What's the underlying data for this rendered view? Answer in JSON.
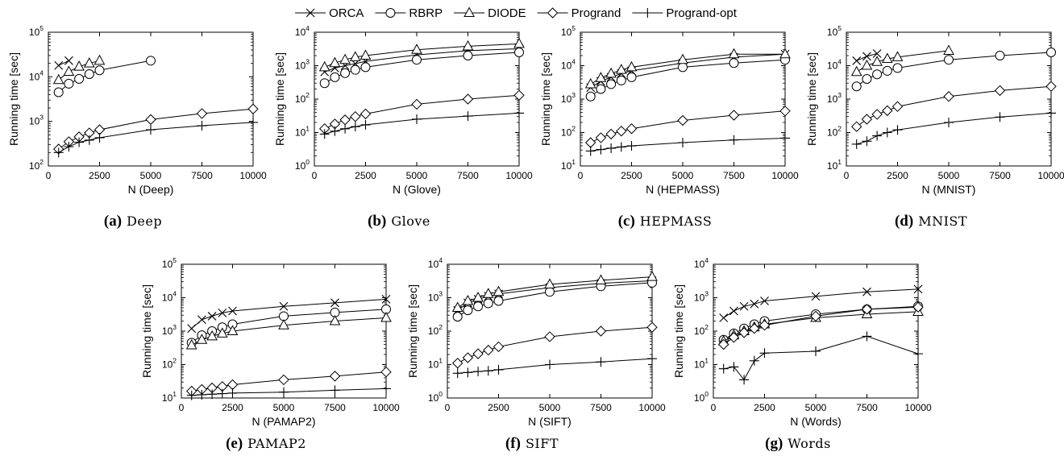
{
  "legend": {
    "entries": [
      {
        "name": "ORCA",
        "marker": "x"
      },
      {
        "name": "RBRP",
        "marker": "circle"
      },
      {
        "name": "DIODE",
        "marker": "triangle"
      },
      {
        "name": "Progrand",
        "marker": "diamond"
      },
      {
        "name": "Progrand-opt",
        "marker": "plus"
      }
    ]
  },
  "ylabel": "Running time [sec]",
  "chart_data": [
    {
      "id": "a",
      "tag": "(a)",
      "caption": "Deep",
      "type": "line",
      "xlabel": "N (Deep)",
      "ylabel": "Running time [sec]",
      "xlim": [
        0,
        10000
      ],
      "ylim_log10": [
        2,
        5
      ],
      "xticks": [
        0,
        2500,
        5000,
        7500,
        10000
      ],
      "yticks": [
        "10^2",
        "10^3",
        "10^4",
        "10^5"
      ],
      "series": [
        {
          "name": "ORCA",
          "marker": "x",
          "x": [
            500,
            1000
          ],
          "y": [
            18000,
            23000
          ]
        },
        {
          "name": "RBRP",
          "marker": "circle",
          "x": [
            500,
            1000,
            1500,
            2000,
            2500,
            5000
          ],
          "y": [
            4500,
            7000,
            9000,
            11500,
            14000,
            23000
          ]
        },
        {
          "name": "DIODE",
          "marker": "triangle",
          "x": [
            500,
            1000,
            1500,
            2000,
            2500
          ],
          "y": [
            8500,
            13000,
            17000,
            20000,
            23000
          ]
        },
        {
          "name": "Progrand",
          "marker": "diamond",
          "x": [
            500,
            1000,
            1500,
            2000,
            2500,
            5000,
            7500,
            10000
          ],
          "y": [
            240,
            350,
            450,
            550,
            650,
            1100,
            1500,
            1900
          ]
        },
        {
          "name": "Progrand-opt",
          "marker": "plus",
          "x": [
            500,
            1000,
            1500,
            2000,
            2500,
            5000,
            7500,
            10000
          ],
          "y": [
            200,
            270,
            340,
            380,
            430,
            650,
            800,
            950
          ]
        }
      ]
    },
    {
      "id": "b",
      "tag": "(b)",
      "caption": "Glove",
      "type": "line",
      "xlabel": "N (Glove)",
      "ylabel": "Running time [sec]",
      "xlim": [
        0,
        10000
      ],
      "ylim_log10": [
        0,
        4
      ],
      "xticks": [
        0,
        2500,
        5000,
        7500,
        10000
      ],
      "yticks": [
        "10^0",
        "10^1",
        "10^2",
        "10^3",
        "10^4"
      ],
      "series": [
        {
          "name": "ORCA",
          "marker": "x",
          "x": [
            500,
            1000,
            1500,
            2000,
            2500,
            5000,
            7500,
            10000
          ],
          "y": [
            650,
            850,
            1000,
            1150,
            1350,
            2100,
            2800,
            3200
          ]
        },
        {
          "name": "RBRP",
          "marker": "circle",
          "x": [
            500,
            1000,
            1500,
            2000,
            2500,
            5000,
            7500,
            10000
          ],
          "y": [
            300,
            450,
            600,
            750,
            900,
            1500,
            2000,
            2500
          ]
        },
        {
          "name": "DIODE",
          "marker": "triangle",
          "x": [
            500,
            1000,
            1500,
            2000,
            2500,
            5000,
            7500,
            10000
          ],
          "y": [
            900,
            1200,
            1500,
            1800,
            2000,
            3000,
            3800,
            4500
          ]
        },
        {
          "name": "Progrand",
          "marker": "diamond",
          "x": [
            500,
            1000,
            1500,
            2000,
            2500,
            5000,
            7500,
            10000
          ],
          "y": [
            13,
            18,
            24,
            30,
            36,
            70,
            100,
            130
          ]
        },
        {
          "name": "Progrand-opt",
          "marker": "plus",
          "x": [
            500,
            1000,
            1500,
            2000,
            2500,
            5000,
            7500,
            10000
          ],
          "y": [
            9,
            11,
            13,
            15,
            17,
            25,
            31,
            38
          ]
        }
      ]
    },
    {
      "id": "c",
      "tag": "(c)",
      "caption": "HEPMASS",
      "type": "line",
      "xlabel": "N (HEPMASS)",
      "ylabel": "Running time [sec]",
      "xlim": [
        0,
        10000
      ],
      "ylim_log10": [
        1,
        5
      ],
      "xticks": [
        0,
        2500,
        5000,
        7500,
        10000
      ],
      "yticks": [
        "10^1",
        "10^2",
        "10^3",
        "10^4",
        "10^5"
      ],
      "series": [
        {
          "name": "ORCA",
          "marker": "x",
          "x": [
            500,
            1000,
            1500,
            2000,
            2500,
            5000,
            7500,
            10000
          ],
          "y": [
            2200,
            3400,
            4500,
            5800,
            7000,
            12000,
            18000,
            22000
          ]
        },
        {
          "name": "RBRP",
          "marker": "circle",
          "x": [
            500,
            1000,
            1500,
            2000,
            2500,
            5000,
            7500,
            10000
          ],
          "y": [
            1200,
            2000,
            2800,
            3600,
            4500,
            9000,
            12000,
            15000
          ]
        },
        {
          "name": "DIODE",
          "marker": "triangle",
          "x": [
            500,
            1000,
            1500,
            2000,
            2500,
            5000,
            7500,
            10000
          ],
          "y": [
            2800,
            4300,
            5800,
            7500,
            9000,
            15000,
            22000,
            22000
          ]
        },
        {
          "name": "Progrand",
          "marker": "diamond",
          "x": [
            500,
            1000,
            1500,
            2000,
            2500,
            5000,
            7500,
            10000
          ],
          "y": [
            50,
            70,
            90,
            110,
            130,
            230,
            330,
            440
          ]
        },
        {
          "name": "Progrand-opt",
          "marker": "plus",
          "x": [
            500,
            1000,
            1500,
            2000,
            2500,
            5000,
            7500,
            10000
          ],
          "y": [
            28,
            31,
            34,
            37,
            40,
            50,
            60,
            68
          ]
        }
      ]
    },
    {
      "id": "d",
      "tag": "(d)",
      "caption": "MNIST",
      "type": "line",
      "xlabel": "N (MNIST)",
      "ylabel": "Running time [sec]",
      "xlim": [
        0,
        10000
      ],
      "ylim_log10": [
        1,
        5
      ],
      "xticks": [
        0,
        2500,
        5000,
        7500,
        10000
      ],
      "yticks": [
        "10^1",
        "10^2",
        "10^3",
        "10^4",
        "10^5"
      ],
      "series": [
        {
          "name": "ORCA",
          "marker": "x",
          "x": [
            500,
            1000,
            1500
          ],
          "y": [
            14000,
            19000,
            23000
          ]
        },
        {
          "name": "RBRP",
          "marker": "circle",
          "x": [
            500,
            1000,
            1500,
            2000,
            2500,
            5000,
            7500,
            10000
          ],
          "y": [
            2400,
            4000,
            5500,
            7000,
            8500,
            15000,
            20000,
            25000
          ]
        },
        {
          "name": "DIODE",
          "marker": "triangle",
          "x": [
            500,
            1000,
            1500,
            2000,
            2500,
            5000
          ],
          "y": [
            6500,
            10000,
            13000,
            16000,
            18000,
            28000
          ]
        },
        {
          "name": "Progrand",
          "marker": "diamond",
          "x": [
            500,
            1000,
            1500,
            2000,
            2500,
            5000,
            7500,
            10000
          ],
          "y": [
            150,
            250,
            350,
            450,
            600,
            1200,
            1800,
            2400
          ]
        },
        {
          "name": "Progrand-opt",
          "marker": "plus",
          "x": [
            500,
            1000,
            1500,
            2000,
            2500,
            5000,
            7500,
            10000
          ],
          "y": [
            45,
            55,
            80,
            100,
            120,
            200,
            290,
            380
          ]
        }
      ]
    },
    {
      "id": "e",
      "tag": "(e)",
      "caption": "PAMAP2",
      "type": "line",
      "xlabel": "N (PAMAP2)",
      "ylabel": "Running time [sec]",
      "xlim": [
        0,
        10000
      ],
      "ylim_log10": [
        1,
        5
      ],
      "xticks": [
        0,
        2500,
        5000,
        7500,
        10000
      ],
      "yticks": [
        "10^1",
        "10^2",
        "10^3",
        "10^4",
        "10^5"
      ],
      "series": [
        {
          "name": "ORCA",
          "marker": "x",
          "x": [
            500,
            1000,
            1500,
            2000,
            2500,
            5000,
            7500,
            10000
          ],
          "y": [
            1200,
            2200,
            2800,
            3500,
            4000,
            5500,
            7000,
            9000
          ]
        },
        {
          "name": "RBRP",
          "marker": "circle",
          "x": [
            500,
            1000,
            1500,
            2000,
            2500,
            5000,
            7500,
            10000
          ],
          "y": [
            450,
            750,
            1000,
            1300,
            1600,
            2800,
            3600,
            4500
          ]
        },
        {
          "name": "DIODE",
          "marker": "triangle",
          "x": [
            500,
            1000,
            1500,
            2000,
            2500,
            5000,
            7500,
            10000
          ],
          "y": [
            380,
            550,
            700,
            850,
            1000,
            1500,
            2000,
            2500
          ]
        },
        {
          "name": "Progrand",
          "marker": "diamond",
          "x": [
            500,
            1000,
            1500,
            2000,
            2500,
            5000,
            7500,
            10000
          ],
          "y": [
            16,
            18,
            20,
            22,
            25,
            35,
            45,
            60
          ]
        },
        {
          "name": "Progrand-opt",
          "marker": "plus",
          "x": [
            500,
            1000,
            1500,
            2000,
            2500,
            5000,
            7500,
            10000
          ],
          "y": [
            12,
            12.5,
            13,
            13.5,
            14,
            15,
            17,
            19
          ]
        }
      ]
    },
    {
      "id": "f",
      "tag": "(f)",
      "caption": "SIFT",
      "type": "line",
      "xlabel": "N (SIFT)",
      "ylabel": "Running time [sec]",
      "xlim": [
        0,
        10000
      ],
      "ylim_log10": [
        0,
        4
      ],
      "xticks": [
        0,
        2500,
        5000,
        7500,
        10000
      ],
      "yticks": [
        "10^0",
        "10^1",
        "10^2",
        "10^3",
        "10^4"
      ],
      "series": [
        {
          "name": "ORCA",
          "marker": "x",
          "x": [
            500,
            1000,
            1500,
            2000,
            2500,
            5000,
            7500,
            10000
          ],
          "y": [
            420,
            700,
            900,
            1100,
            1300,
            2000,
            2700,
            3200
          ]
        },
        {
          "name": "RBRP",
          "marker": "circle",
          "x": [
            500,
            1000,
            1500,
            2000,
            2500,
            5000,
            7500,
            10000
          ],
          "y": [
            270,
            420,
            550,
            680,
            800,
            1500,
            2200,
            2800
          ]
        },
        {
          "name": "DIODE",
          "marker": "triangle",
          "x": [
            500,
            1000,
            1500,
            2000,
            2500,
            5000,
            7500,
            10000
          ],
          "y": [
            500,
            800,
            1000,
            1300,
            1500,
            2500,
            3300,
            4200
          ]
        },
        {
          "name": "Progrand",
          "marker": "diamond",
          "x": [
            500,
            1000,
            1500,
            2000,
            2500,
            5000,
            7500,
            10000
          ],
          "y": [
            11,
            16,
            21,
            27,
            34,
            68,
            100,
            130
          ]
        },
        {
          "name": "Progrand-opt",
          "marker": "plus",
          "x": [
            500,
            1000,
            1500,
            2000,
            2500,
            5000,
            7500,
            10000
          ],
          "y": [
            5.5,
            5.8,
            6.2,
            6.5,
            7,
            10,
            12,
            15
          ]
        }
      ]
    },
    {
      "id": "g",
      "tag": "(g)",
      "caption": "Words",
      "type": "line",
      "xlabel": "N (Words)",
      "ylabel": "Running time [sec]",
      "xlim": [
        0,
        10000
      ],
      "ylim_log10": [
        0,
        4
      ],
      "xticks": [
        0,
        2500,
        5000,
        7500,
        10000
      ],
      "yticks": [
        "10^0",
        "10^1",
        "10^2",
        "10^3",
        "10^4"
      ],
      "series": [
        {
          "name": "ORCA",
          "marker": "x",
          "x": [
            500,
            1000,
            1500,
            2000,
            2500,
            5000,
            7500,
            10000
          ],
          "y": [
            250,
            400,
            550,
            650,
            800,
            1100,
            1500,
            1800
          ]
        },
        {
          "name": "RBRP",
          "marker": "circle",
          "x": [
            500,
            1000,
            1500,
            2000,
            2500,
            5000,
            7500,
            10000
          ],
          "y": [
            55,
            85,
            120,
            160,
            200,
            320,
            450,
            550
          ]
        },
        {
          "name": "DIODE",
          "marker": "triangle",
          "x": [
            500,
            1000,
            1500,
            2000,
            2500,
            5000,
            7500,
            10000
          ],
          "y": [
            50,
            75,
            100,
            130,
            160,
            250,
            320,
            380
          ]
        },
        {
          "name": "Progrand",
          "marker": "diamond",
          "x": [
            500,
            1000,
            1500,
            2000,
            2500,
            5000,
            7500,
            10000
          ],
          "y": [
            40,
            65,
            90,
            120,
            150,
            280,
            450,
            520
          ]
        },
        {
          "name": "Progrand-opt",
          "marker": "plus",
          "x": [
            500,
            1000,
            1500,
            2000,
            2500,
            5000,
            7500,
            10000
          ],
          "y": [
            7.5,
            8.5,
            3.5,
            13,
            22,
            25,
            70,
            21
          ]
        }
      ]
    }
  ]
}
